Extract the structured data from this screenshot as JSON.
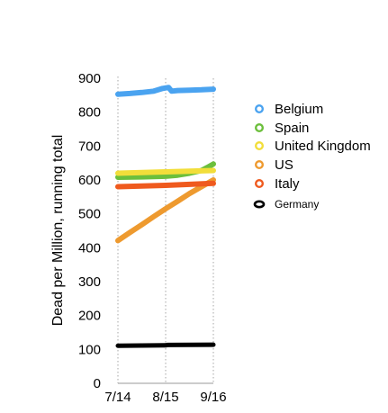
{
  "chart_data": {
    "type": "line",
    "title": "",
    "xlabel": "",
    "ylabel": "Dead per Million, running total",
    "ylim": [
      0,
      900
    ],
    "yticks": [
      0,
      100,
      200,
      300,
      400,
      500,
      600,
      700,
      800,
      900
    ],
    "xticks": [
      "7/14",
      "8/15",
      "9/16"
    ],
    "x_range_days": [
      0,
      64
    ],
    "grid": "vertical dotted at x ticks",
    "legend_position": "right",
    "series": [
      {
        "name": "Belgium",
        "color": "#4aa3f0",
        "x": [
          0,
          8,
          16,
          24,
          30,
          34,
          36,
          40,
          48,
          56,
          64
        ],
        "values": [
          853,
          855,
          858,
          862,
          870,
          873,
          862,
          864,
          865,
          866,
          868
        ]
      },
      {
        "name": "Spain",
        "color": "#6cbf3c",
        "x": [
          0,
          16,
          32,
          40,
          48,
          56,
          60,
          64
        ],
        "values": [
          608,
          609,
          611,
          614,
          620,
          628,
          637,
          647
        ]
      },
      {
        "name": "United Kingdom",
        "color": "#f2de3a",
        "x": [
          0,
          16,
          32,
          48,
          64
        ],
        "values": [
          620,
          622,
          624,
          626,
          628
        ]
      },
      {
        "name": "US",
        "color": "#ee9a2f",
        "x": [
          0,
          8,
          16,
          24,
          32,
          40,
          48,
          56,
          64
        ],
        "values": [
          421,
          445,
          468,
          492,
          515,
          537,
          560,
          580,
          600
        ]
      },
      {
        "name": "Italy",
        "color": "#ef5a1e",
        "x": [
          0,
          16,
          32,
          48,
          64
        ],
        "values": [
          580,
          582,
          584,
          587,
          590
        ]
      },
      {
        "name": "Germany",
        "color": "#000000",
        "x": [
          0,
          32,
          33,
          64
        ],
        "values": [
          111,
          112,
          113,
          114
        ]
      }
    ]
  }
}
